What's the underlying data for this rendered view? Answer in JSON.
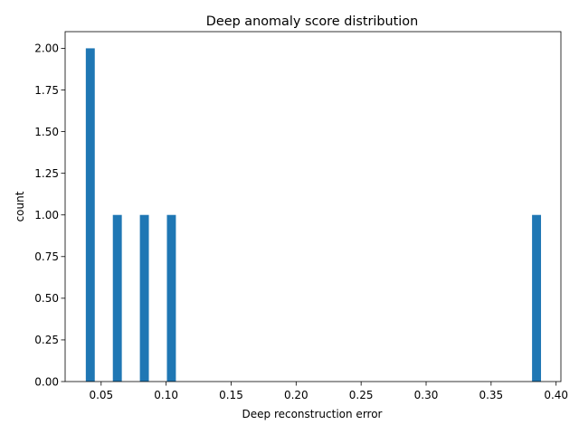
{
  "chart_data": {
    "type": "bar",
    "title": "Deep anomaly score distribution",
    "xlabel": "Deep reconstruction error",
    "ylabel": "count",
    "xlim": [
      0.0223,
      0.4037
    ],
    "ylim": [
      0,
      2.1
    ],
    "xticks": [
      0.05,
      0.1,
      0.15,
      0.2,
      0.25,
      0.3,
      0.35,
      0.4
    ],
    "xtick_labels": [
      "0.05",
      "0.10",
      "0.15",
      "0.20",
      "0.25",
      "0.30",
      "0.35",
      "0.40"
    ],
    "yticks": [
      0,
      0.25,
      0.5,
      0.75,
      1.0,
      1.25,
      1.5,
      1.75,
      2.0
    ],
    "ytick_labels": [
      "0.00",
      "0.25",
      "0.50",
      "0.75",
      "1.00",
      "1.25",
      "1.50",
      "1.75",
      "2.00"
    ],
    "bins": [
      {
        "x0": 0.0382,
        "x1": 0.0451,
        "count": 2
      },
      {
        "x0": 0.059,
        "x1": 0.0659,
        "count": 1
      },
      {
        "x0": 0.0798,
        "x1": 0.0867,
        "count": 1
      },
      {
        "x0": 0.1006,
        "x1": 0.1075,
        "count": 1
      },
      {
        "x0": 0.3815,
        "x1": 0.3884,
        "count": 1
      }
    ],
    "grid": false,
    "legend": "none"
  },
  "colors": {
    "bar": "#1f77b4",
    "axis": "#000000"
  }
}
